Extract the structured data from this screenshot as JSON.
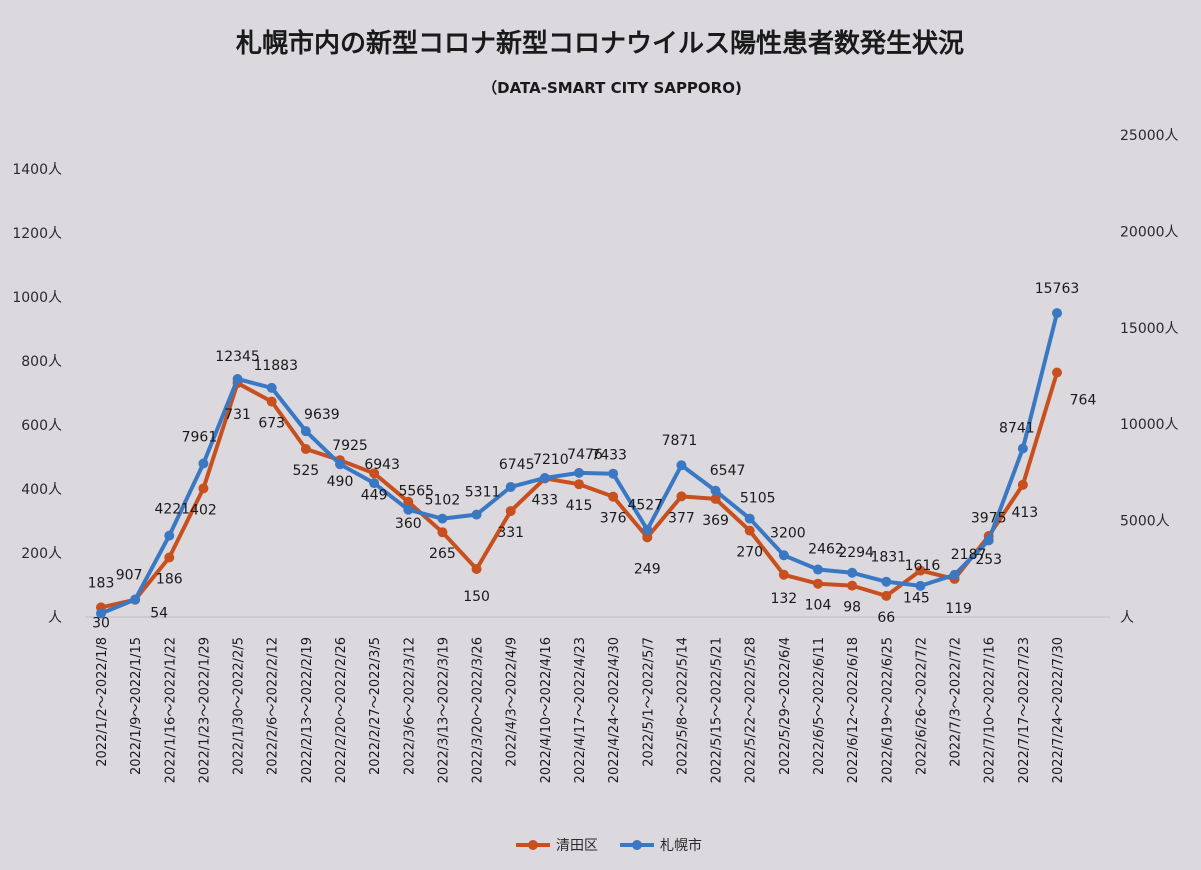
{
  "chart_data": {
    "type": "line",
    "title": "札幌市内の新型コロナ新型コロナウイルス陽性患者数発生状況",
    "subtitle": "（DATA-SMART CITY SAPPORO)",
    "categories": [
      "2022/1/2～2022/1/8",
      "2022/1/9～2022/1/15",
      "2022/1/16～2022/1/22",
      "2022/1/23～2022/1/29",
      "2022/1/30～2022/2/5",
      "2022/2/6～2022/2/12",
      "2022/2/13～2022/2/19",
      "2022/2/20～2022/2/26",
      "2022/2/27～2022/3/5",
      "2022/3/6～2022/3/12",
      "2022/3/13～2022/3/19",
      "2022/3/20～2022/3/26",
      "2022/4/3～2022/4/9",
      "2022/4/10～2022/4/16",
      "2022/4/17～2022/4/23",
      "2022/4/24～2022/4/30",
      "2022/5/1～2022/5/7",
      "2022/5/8～2022/5/14",
      "2022/5/15～2022/5/21",
      "2022/5/22～2022/5/28",
      "2022/5/29～2022/6/4",
      "2022/6/5～2022/6/11",
      "2022/6/12～2022/6/18",
      "2022/6/19～2022/6/25",
      "2022/6/26～2022/7/2",
      "2022/7/3～2022/7/2",
      "2022/7/10～2022/7/16",
      "2022/7/17～2022/7/23",
      "2022/7/24～2022/7/30"
    ],
    "x_labels_shown": [
      "2022/1/2～2022/1/8",
      "2022/1/9～2022/1/15",
      "2022/1/16～2022/1/22",
      "2022/1/23～2022/1/29",
      "2022/1/30～2022/2/5",
      "2022/2/6～2022/2/12",
      "2022/2/13～2022/2/19",
      "2022/2/20～2022/2/26",
      "2022/2/27～2022/3/5",
      "2022/3/6～2022/3/12",
      "2022/3/13～2022/3/19",
      "2022/3/20～2022/3/26",
      "2022/4/3～2022/4/9",
      "2022/4/10～2022/4/16",
      "2022/4/17～2022/4/23",
      "2022/4/24～2022/4/30",
      "2022/5/1～2022/5/7",
      "2022/5/8～2022/5/14",
      "2022/5/15～2022/5/21",
      "2022/5/22～2022/5/28",
      "2022/5/29～2022/6/4",
      "2022/6/5～2022/6/11",
      "2022/6/12～2022/6/18",
      "2022/6/19～2022/6/25",
      "2022/6/26～2022/7/2",
      "2022/7/3～2022/7/2",
      "2022/7/10～2022/7/16",
      "2022/7/17～2022/7/23",
      "2022/7/24～2022/7/30"
    ],
    "series": [
      {
        "name": "清田区",
        "axis": "left",
        "color": "#c8501e",
        "values": [
          30,
          54,
          186,
          402,
          731,
          673,
          525,
          490,
          449,
          360,
          265,
          150,
          331,
          433,
          415,
          376,
          249,
          377,
          369,
          270,
          132,
          104,
          98,
          66,
          145,
          119,
          253,
          413,
          764
        ],
        "labels": [
          "30",
          "54",
          "186",
          "402",
          "731",
          "673",
          "525",
          "490",
          "449",
          "360",
          "265",
          "150",
          "331",
          "433",
          "415",
          "376",
          "249",
          "377",
          "369",
          "270",
          "132",
          "104",
          "98",
          "66",
          "145",
          "119",
          "253",
          "413",
          "764"
        ]
      },
      {
        "name": "札幌市",
        "axis": "right",
        "color": "#3a78c4",
        "values": [
          183,
          907,
          4221,
          7961,
          12345,
          11883,
          9639,
          7925,
          6943,
          5565,
          5102,
          5311,
          6745,
          7210,
          7476,
          7433,
          4527,
          7871,
          6547,
          5105,
          3200,
          2462,
          2294,
          1831,
          1616,
          2187,
          3975,
          8741,
          15763
        ],
        "labels": [
          "183",
          "907",
          "4221",
          "7961",
          "12345",
          "11883",
          "9639",
          "7925",
          "6943",
          "5565",
          "5102",
          "5311",
          "6745",
          "7210",
          "7476",
          "7433",
          "4527",
          "7871",
          "6547",
          "5105",
          "3200",
          "2462",
          "2294",
          "1831",
          "1616",
          "2187",
          "3975",
          "8741",
          "15763"
        ]
      }
    ],
    "y_left": {
      "range": [
        0,
        1400
      ],
      "ticks": [
        0,
        200,
        400,
        600,
        800,
        1000,
        1200,
        1400
      ],
      "tick_labels": [
        "人",
        "200人",
        "400人",
        "600人",
        "800人",
        "1000人",
        "1200人",
        "1400人"
      ]
    },
    "y_right": {
      "range": [
        0,
        25000
      ],
      "ticks": [
        0,
        5000,
        10000,
        15000,
        20000,
        25000
      ],
      "tick_labels": [
        "人",
        "5000人",
        "10000人",
        "15000人",
        "20000人",
        "25000人"
      ]
    },
    "grid": false,
    "legend_position": "bottom"
  }
}
